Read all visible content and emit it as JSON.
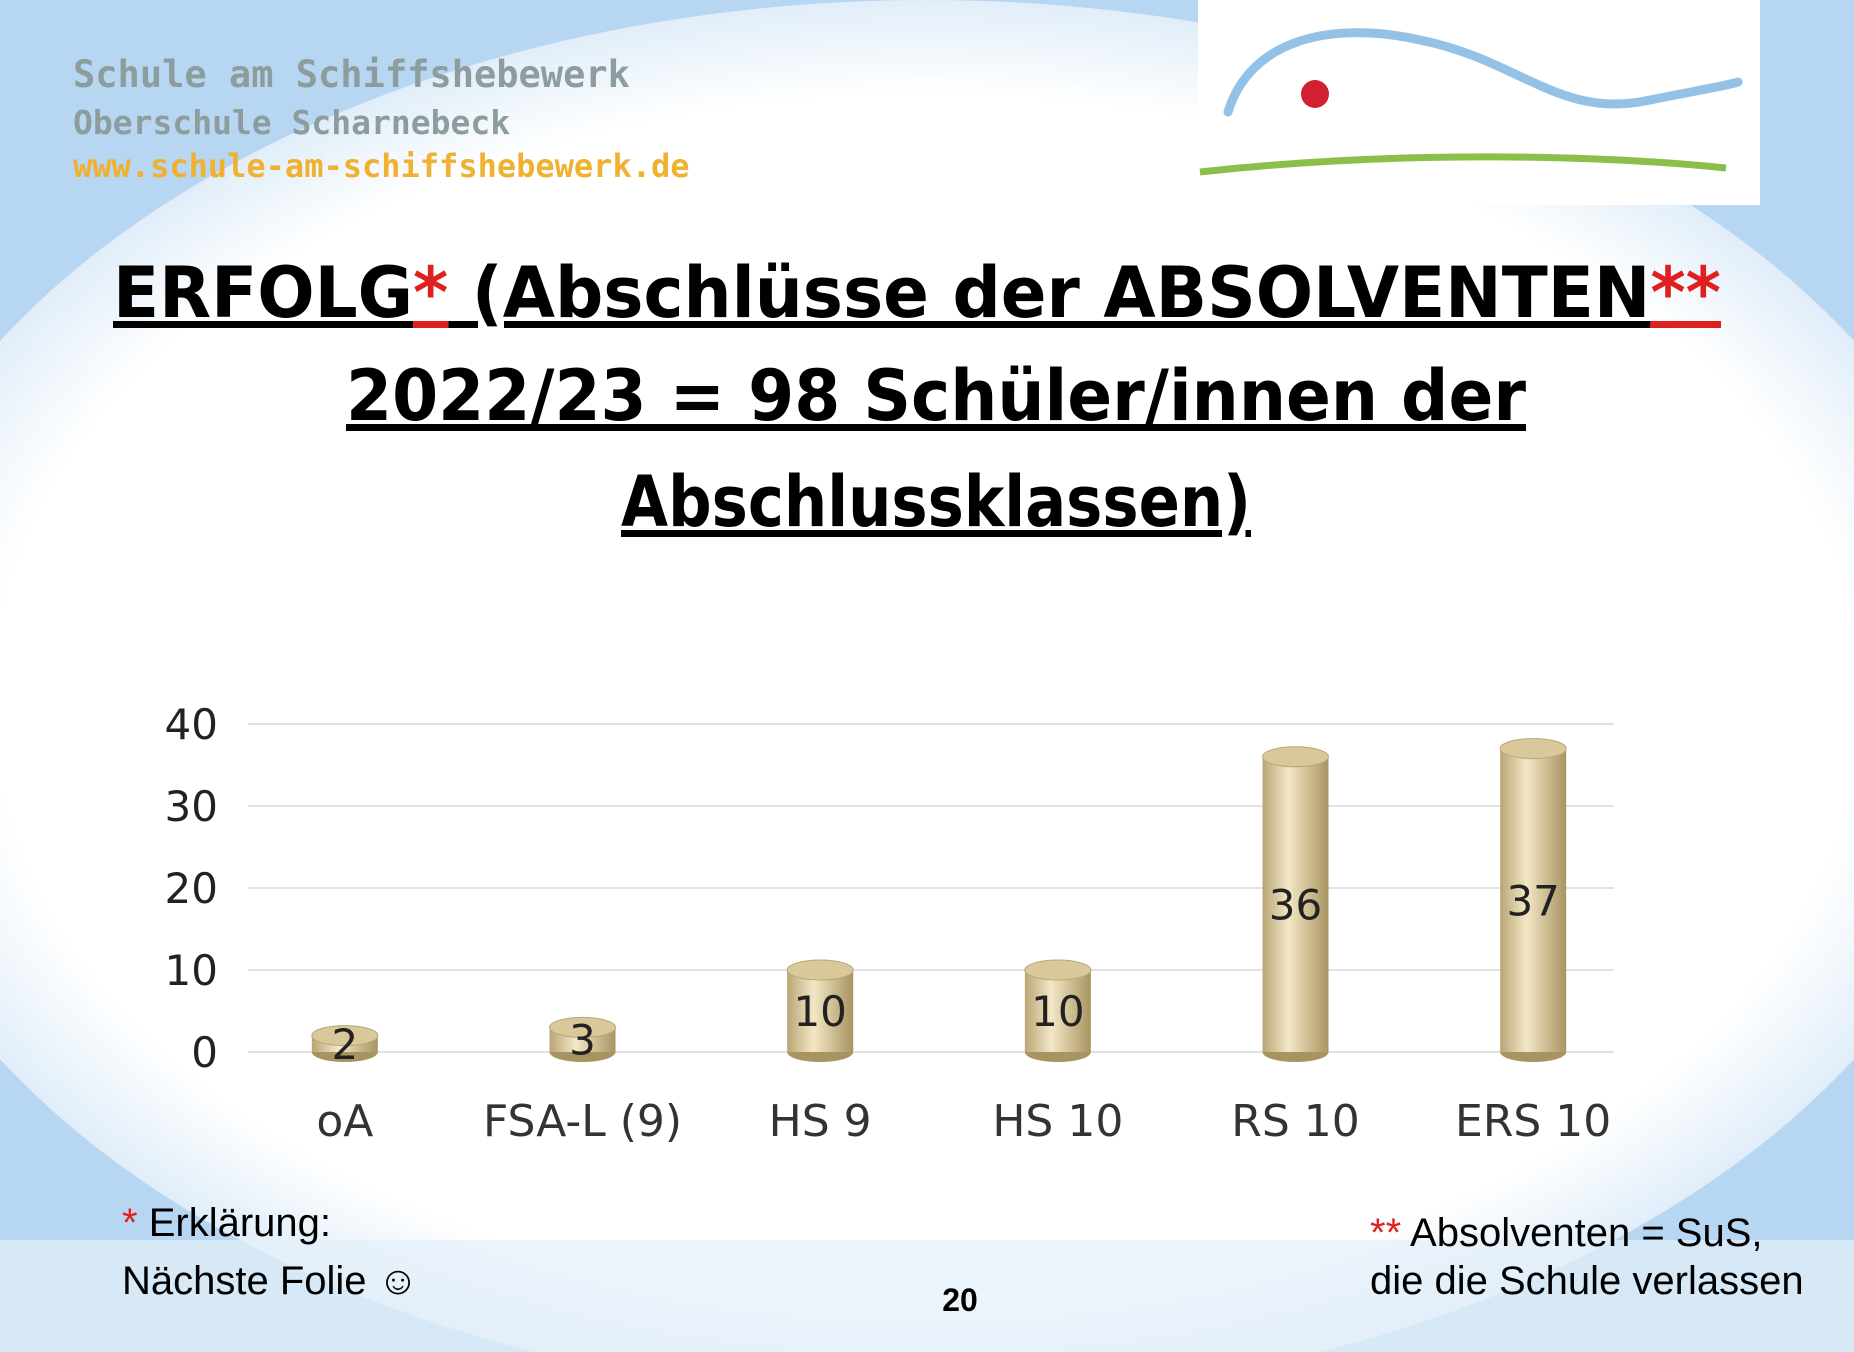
{
  "header": {
    "school": "Schule am Schiffshebewerk",
    "subtitle": "Oberschule Scharnebeck",
    "website": "www.schule-am-schiffshebewerk.de"
  },
  "title": {
    "word": "ERFOLG",
    "star1": "*",
    "rest": " (Abschlüsse der ABSOLVENTEN",
    "star2": "**",
    "line2": "2022/23 = 98 Schüler/innen der",
    "line3": "Abschlussklassen)"
  },
  "chart_data": {
    "type": "bar",
    "categories": [
      "oA",
      "FSA-L (9)",
      "HS 9",
      "HS 10",
      "RS 10",
      "ERS 10"
    ],
    "values": [
      2,
      3,
      10,
      10,
      36,
      37
    ],
    "color": "#d9c99a",
    "ylim": [
      0,
      40
    ],
    "yticks": [
      0,
      10,
      20,
      30,
      40
    ],
    "grid": true
  },
  "footnotes": {
    "left_star": "*",
    "left_line1": " Erklärung:",
    "left_line2": "Nächste Folie ☺",
    "right_star": "**",
    "right_line1": " Absolventen = SuS,",
    "right_line2": "die die Schule verlassen"
  },
  "page_number": "20"
}
